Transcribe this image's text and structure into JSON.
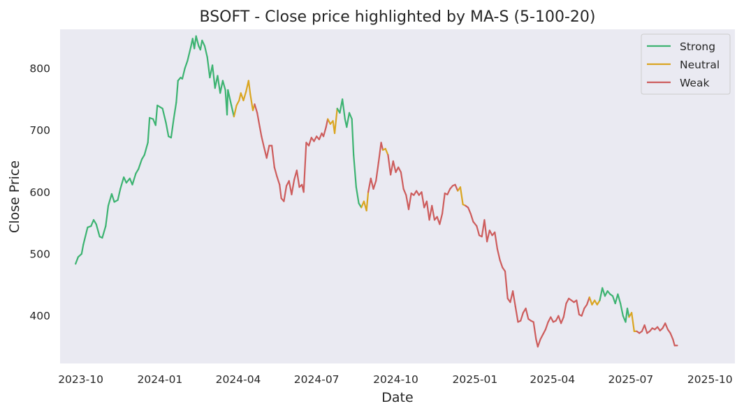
{
  "chart_data": {
    "type": "line",
    "title": "BSOFT - Close price highlighted by MA-S (5-100-20)",
    "xlabel": "Date",
    "ylabel": "Close Price",
    "x_range": [
      "2023-09-07",
      "2025-10-30"
    ],
    "ylim": [
      323,
      863
    ],
    "x_ticks": [
      "2023-10",
      "2024-01",
      "2024-04",
      "2024-07",
      "2024-10",
      "2025-01",
      "2025-04",
      "2025-07",
      "2025-10"
    ],
    "y_ticks": [
      400,
      500,
      600,
      700,
      800
    ],
    "grid": false,
    "legend_position": "top-right",
    "series": [
      {
        "name": "Strong",
        "color": "#3cb371"
      },
      {
        "name": "Neutral",
        "color": "#daa520"
      },
      {
        "name": "Weak",
        "color": "#cd5c5c"
      }
    ],
    "points": [
      [
        "2023-09-25",
        484,
        "Strong"
      ],
      [
        "2023-09-28",
        495,
        "Strong"
      ],
      [
        "2023-10-02",
        500,
        "Strong"
      ],
      [
        "2023-10-04",
        515,
        "Strong"
      ],
      [
        "2023-10-09",
        543,
        "Strong"
      ],
      [
        "2023-10-13",
        545,
        "Strong"
      ],
      [
        "2023-10-16",
        555,
        "Strong"
      ],
      [
        "2023-10-19",
        548,
        "Strong"
      ],
      [
        "2023-10-23",
        528,
        "Strong"
      ],
      [
        "2023-10-26",
        526,
        "Strong"
      ],
      [
        "2023-10-30",
        545,
        "Strong"
      ],
      [
        "2023-11-02",
        578,
        "Strong"
      ],
      [
        "2023-11-06",
        597,
        "Strong"
      ],
      [
        "2023-11-09",
        584,
        "Strong"
      ],
      [
        "2023-11-13",
        587,
        "Strong"
      ],
      [
        "2023-11-16",
        605,
        "Strong"
      ],
      [
        "2023-11-20",
        624,
        "Strong"
      ],
      [
        "2023-11-23",
        615,
        "Strong"
      ],
      [
        "2023-11-27",
        622,
        "Strong"
      ],
      [
        "2023-11-30",
        612,
        "Strong"
      ],
      [
        "2023-12-04",
        630,
        "Strong"
      ],
      [
        "2023-12-07",
        637,
        "Strong"
      ],
      [
        "2023-12-11",
        653,
        "Strong"
      ],
      [
        "2023-12-14",
        660,
        "Strong"
      ],
      [
        "2023-12-18",
        680,
        "Strong"
      ],
      [
        "2023-12-20",
        720,
        "Strong"
      ],
      [
        "2023-12-24",
        718,
        "Strong"
      ],
      [
        "2023-12-27",
        708,
        "Strong"
      ],
      [
        "2023-12-29",
        740,
        "Strong"
      ],
      [
        "2024-01-04",
        735,
        "Strong"
      ],
      [
        "2024-01-08",
        712,
        "Strong"
      ],
      [
        "2024-01-11",
        690,
        "Strong"
      ],
      [
        "2024-01-14",
        688,
        "Strong"
      ],
      [
        "2024-01-17",
        718,
        "Strong"
      ],
      [
        "2024-01-20",
        745,
        "Strong"
      ],
      [
        "2024-01-22",
        780,
        "Strong"
      ],
      [
        "2024-01-25",
        785,
        "Strong"
      ],
      [
        "2024-01-27",
        783,
        "Strong"
      ],
      [
        "2024-01-30",
        800,
        "Strong"
      ],
      [
        "2024-02-02",
        812,
        "Strong"
      ],
      [
        "2024-02-06",
        835,
        "Strong"
      ],
      [
        "2024-02-08",
        848,
        "Strong"
      ],
      [
        "2024-02-10",
        832,
        "Strong"
      ],
      [
        "2024-02-12",
        852,
        "Strong"
      ],
      [
        "2024-02-15",
        836,
        "Strong"
      ],
      [
        "2024-02-17",
        830,
        "Strong"
      ],
      [
        "2024-02-19",
        845,
        "Strong"
      ],
      [
        "2024-02-22",
        836,
        "Strong"
      ],
      [
        "2024-02-25",
        818,
        "Strong"
      ],
      [
        "2024-02-28",
        785,
        "Strong"
      ],
      [
        "2024-03-02",
        805,
        "Strong"
      ],
      [
        "2024-03-05",
        768,
        "Strong"
      ],
      [
        "2024-03-08",
        788,
        "Strong"
      ],
      [
        "2024-03-11",
        760,
        "Strong"
      ],
      [
        "2024-03-14",
        780,
        "Strong"
      ],
      [
        "2024-03-17",
        765,
        "Strong"
      ],
      [
        "2024-03-19",
        725,
        "Strong"
      ],
      [
        "2024-03-20",
        765,
        "Strong"
      ],
      [
        "2024-03-24",
        740,
        "Strong"
      ],
      [
        "2024-03-27",
        722,
        "Neutral"
      ],
      [
        "2024-03-30",
        740,
        "Neutral"
      ],
      [
        "2024-04-02",
        748,
        "Neutral"
      ],
      [
        "2024-04-04",
        760,
        "Neutral"
      ],
      [
        "2024-04-07",
        748,
        "Neutral"
      ],
      [
        "2024-04-10",
        762,
        "Neutral"
      ],
      [
        "2024-04-13",
        780,
        "Neutral"
      ],
      [
        "2024-04-15",
        758,
        "Neutral"
      ],
      [
        "2024-04-18",
        732,
        "Neutral"
      ],
      [
        "2024-04-20",
        742,
        "Weak"
      ],
      [
        "2024-04-23",
        728,
        "Weak"
      ],
      [
        "2024-04-26",
        705,
        "Weak"
      ],
      [
        "2024-04-28",
        690,
        "Weak"
      ],
      [
        "2024-05-01",
        672,
        "Weak"
      ],
      [
        "2024-05-04",
        655,
        "Weak"
      ],
      [
        "2024-05-07",
        675,
        "Weak"
      ],
      [
        "2024-05-10",
        675,
        "Weak"
      ],
      [
        "2024-05-13",
        640,
        "Weak"
      ],
      [
        "2024-05-16",
        625,
        "Weak"
      ],
      [
        "2024-05-19",
        612,
        "Weak"
      ],
      [
        "2024-05-21",
        590,
        "Weak"
      ],
      [
        "2024-05-24",
        585,
        "Weak"
      ],
      [
        "2024-05-27",
        610,
        "Weak"
      ],
      [
        "2024-05-30",
        618,
        "Weak"
      ],
      [
        "2024-06-02",
        596,
        "Weak"
      ],
      [
        "2024-06-05",
        620,
        "Weak"
      ],
      [
        "2024-06-08",
        635,
        "Weak"
      ],
      [
        "2024-06-11",
        608,
        "Weak"
      ],
      [
        "2024-06-14",
        612,
        "Weak"
      ],
      [
        "2024-06-16",
        600,
        "Weak"
      ],
      [
        "2024-06-19",
        680,
        "Weak"
      ],
      [
        "2024-06-22",
        675,
        "Weak"
      ],
      [
        "2024-06-25",
        688,
        "Weak"
      ],
      [
        "2024-06-28",
        682,
        "Weak"
      ],
      [
        "2024-07-01",
        690,
        "Weak"
      ],
      [
        "2024-07-04",
        685,
        "Weak"
      ],
      [
        "2024-07-07",
        695,
        "Weak"
      ],
      [
        "2024-07-09",
        690,
        "Weak"
      ],
      [
        "2024-07-12",
        705,
        "Weak"
      ],
      [
        "2024-07-14",
        718,
        "Neutral"
      ],
      [
        "2024-07-17",
        710,
        "Neutral"
      ],
      [
        "2024-07-20",
        715,
        "Neutral"
      ],
      [
        "2024-07-22",
        695,
        "Neutral"
      ],
      [
        "2024-07-25",
        735,
        "Strong"
      ],
      [
        "2024-07-28",
        728,
        "Strong"
      ],
      [
        "2024-07-31",
        750,
        "Strong"
      ],
      [
        "2024-08-03",
        718,
        "Strong"
      ],
      [
        "2024-08-05",
        705,
        "Strong"
      ],
      [
        "2024-08-08",
        728,
        "Strong"
      ],
      [
        "2024-08-11",
        718,
        "Strong"
      ],
      [
        "2024-08-13",
        660,
        "Strong"
      ],
      [
        "2024-08-16",
        608,
        "Strong"
      ],
      [
        "2024-08-19",
        582,
        "Strong"
      ],
      [
        "2024-08-22",
        575,
        "Neutral"
      ],
      [
        "2024-08-25",
        585,
        "Neutral"
      ],
      [
        "2024-08-28",
        570,
        "Neutral"
      ],
      [
        "2024-08-30",
        600,
        "Weak"
      ],
      [
        "2024-09-02",
        622,
        "Weak"
      ],
      [
        "2024-09-05",
        605,
        "Weak"
      ],
      [
        "2024-09-08",
        618,
        "Weak"
      ],
      [
        "2024-09-11",
        648,
        "Weak"
      ],
      [
        "2024-09-14",
        680,
        "Weak"
      ],
      [
        "2024-09-16",
        668,
        "Neutral"
      ],
      [
        "2024-09-19",
        670,
        "Neutral"
      ],
      [
        "2024-09-22",
        660,
        "Weak"
      ],
      [
        "2024-09-25",
        628,
        "Weak"
      ],
      [
        "2024-09-28",
        650,
        "Weak"
      ],
      [
        "2024-10-01",
        632,
        "Weak"
      ],
      [
        "2024-10-04",
        640,
        "Weak"
      ],
      [
        "2024-10-07",
        632,
        "Weak"
      ],
      [
        "2024-10-10",
        605,
        "Weak"
      ],
      [
        "2024-10-13",
        595,
        "Weak"
      ],
      [
        "2024-10-16",
        572,
        "Weak"
      ],
      [
        "2024-10-19",
        598,
        "Weak"
      ],
      [
        "2024-10-22",
        595,
        "Weak"
      ],
      [
        "2024-10-25",
        602,
        "Weak"
      ],
      [
        "2024-10-28",
        595,
        "Weak"
      ],
      [
        "2024-10-31",
        600,
        "Weak"
      ],
      [
        "2024-11-03",
        575,
        "Weak"
      ],
      [
        "2024-11-06",
        585,
        "Weak"
      ],
      [
        "2024-11-09",
        555,
        "Weak"
      ],
      [
        "2024-11-12",
        578,
        "Weak"
      ],
      [
        "2024-11-15",
        555,
        "Weak"
      ],
      [
        "2024-11-18",
        560,
        "Weak"
      ],
      [
        "2024-11-21",
        548,
        "Weak"
      ],
      [
        "2024-11-24",
        565,
        "Weak"
      ],
      [
        "2024-11-27",
        598,
        "Weak"
      ],
      [
        "2024-11-30",
        596,
        "Weak"
      ],
      [
        "2024-12-03",
        605,
        "Weak"
      ],
      [
        "2024-12-06",
        610,
        "Weak"
      ],
      [
        "2024-12-09",
        612,
        "Weak"
      ],
      [
        "2024-12-12",
        602,
        "Neutral"
      ],
      [
        "2024-12-15",
        608,
        "Neutral"
      ],
      [
        "2024-12-18",
        580,
        "Neutral"
      ],
      [
        "2024-12-21",
        578,
        "Weak"
      ],
      [
        "2024-12-24",
        575,
        "Weak"
      ],
      [
        "2024-12-27",
        565,
        "Weak"
      ],
      [
        "2024-12-30",
        552,
        "Weak"
      ],
      [
        "2025-01-03",
        545,
        "Weak"
      ],
      [
        "2025-01-06",
        530,
        "Weak"
      ],
      [
        "2025-01-09",
        528,
        "Weak"
      ],
      [
        "2025-01-12",
        555,
        "Weak"
      ],
      [
        "2025-01-15",
        520,
        "Weak"
      ],
      [
        "2025-01-18",
        538,
        "Weak"
      ],
      [
        "2025-01-21",
        530,
        "Weak"
      ],
      [
        "2025-01-24",
        535,
        "Weak"
      ],
      [
        "2025-01-27",
        508,
        "Weak"
      ],
      [
        "2025-01-30",
        490,
        "Weak"
      ],
      [
        "2025-02-02",
        478,
        "Weak"
      ],
      [
        "2025-02-05",
        472,
        "Weak"
      ],
      [
        "2025-02-08",
        428,
        "Weak"
      ],
      [
        "2025-02-11",
        422,
        "Weak"
      ],
      [
        "2025-02-14",
        440,
        "Weak"
      ],
      [
        "2025-02-17",
        415,
        "Weak"
      ],
      [
        "2025-02-20",
        390,
        "Weak"
      ],
      [
        "2025-02-23",
        392,
        "Weak"
      ],
      [
        "2025-02-26",
        405,
        "Weak"
      ],
      [
        "2025-03-01",
        412,
        "Weak"
      ],
      [
        "2025-03-04",
        395,
        "Weak"
      ],
      [
        "2025-03-07",
        392,
        "Weak"
      ],
      [
        "2025-03-10",
        390,
        "Weak"
      ],
      [
        "2025-03-13",
        362,
        "Weak"
      ],
      [
        "2025-03-15",
        350,
        "Weak"
      ],
      [
        "2025-03-18",
        362,
        "Weak"
      ],
      [
        "2025-03-21",
        370,
        "Weak"
      ],
      [
        "2025-03-24",
        378,
        "Weak"
      ],
      [
        "2025-03-27",
        390,
        "Weak"
      ],
      [
        "2025-03-30",
        398,
        "Weak"
      ],
      [
        "2025-04-02",
        390,
        "Weak"
      ],
      [
        "2025-04-05",
        392,
        "Weak"
      ],
      [
        "2025-04-08",
        400,
        "Weak"
      ],
      [
        "2025-04-11",
        388,
        "Weak"
      ],
      [
        "2025-04-14",
        398,
        "Weak"
      ],
      [
        "2025-04-17",
        420,
        "Weak"
      ],
      [
        "2025-04-20",
        428,
        "Weak"
      ],
      [
        "2025-04-23",
        425,
        "Weak"
      ],
      [
        "2025-04-26",
        422,
        "Weak"
      ],
      [
        "2025-04-29",
        425,
        "Weak"
      ],
      [
        "2025-05-02",
        402,
        "Weak"
      ],
      [
        "2025-05-05",
        400,
        "Weak"
      ],
      [
        "2025-05-08",
        412,
        "Weak"
      ],
      [
        "2025-05-11",
        418,
        "Weak"
      ],
      [
        "2025-05-14",
        430,
        "Neutral"
      ],
      [
        "2025-05-17",
        418,
        "Neutral"
      ],
      [
        "2025-05-20",
        425,
        "Neutral"
      ],
      [
        "2025-05-23",
        418,
        "Neutral"
      ],
      [
        "2025-05-26",
        425,
        "Strong"
      ],
      [
        "2025-05-29",
        445,
        "Strong"
      ],
      [
        "2025-06-01",
        432,
        "Strong"
      ],
      [
        "2025-06-04",
        440,
        "Strong"
      ],
      [
        "2025-06-07",
        435,
        "Strong"
      ],
      [
        "2025-06-10",
        432,
        "Strong"
      ],
      [
        "2025-06-13",
        420,
        "Strong"
      ],
      [
        "2025-06-16",
        435,
        "Strong"
      ],
      [
        "2025-06-19",
        420,
        "Strong"
      ],
      [
        "2025-06-22",
        400,
        "Strong"
      ],
      [
        "2025-06-25",
        390,
        "Strong"
      ],
      [
        "2025-06-27",
        412,
        "Strong"
      ],
      [
        "2025-06-29",
        398,
        "Neutral"
      ],
      [
        "2025-07-02",
        405,
        "Neutral"
      ],
      [
        "2025-07-05",
        375,
        "Neutral"
      ],
      [
        "2025-07-08",
        375,
        "Weak"
      ],
      [
        "2025-07-11",
        372,
        "Weak"
      ],
      [
        "2025-07-14",
        375,
        "Weak"
      ],
      [
        "2025-07-17",
        385,
        "Weak"
      ],
      [
        "2025-07-20",
        372,
        "Weak"
      ],
      [
        "2025-07-23",
        375,
        "Weak"
      ],
      [
        "2025-07-26",
        380,
        "Weak"
      ],
      [
        "2025-07-29",
        378,
        "Weak"
      ],
      [
        "2025-08-01",
        382,
        "Weak"
      ],
      [
        "2025-08-04",
        376,
        "Weak"
      ],
      [
        "2025-08-07",
        380,
        "Weak"
      ],
      [
        "2025-08-10",
        388,
        "Weak"
      ],
      [
        "2025-08-13",
        378,
        "Weak"
      ],
      [
        "2025-08-16",
        372,
        "Weak"
      ],
      [
        "2025-08-19",
        362,
        "Weak"
      ],
      [
        "2025-08-21",
        352,
        "Weak"
      ],
      [
        "2025-08-24",
        352,
        "Weak"
      ]
    ]
  }
}
